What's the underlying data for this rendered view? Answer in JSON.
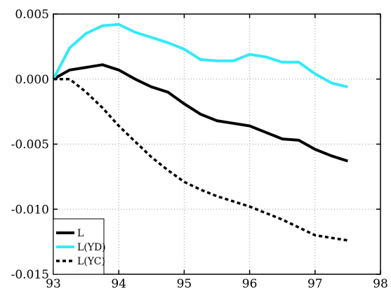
{
  "chart_data": {
    "type": "line",
    "title": "",
    "xlabel": "",
    "ylabel": "",
    "xlim": [
      93,
      98
    ],
    "ylim": [
      -0.015,
      0.005
    ],
    "xticks": [
      93,
      94,
      95,
      96,
      97,
      98
    ],
    "xtick_labels": [
      "93",
      "94",
      "95",
      "96",
      "97",
      "98"
    ],
    "yticks": [
      -0.015,
      -0.01,
      -0.005,
      0.0,
      0.005
    ],
    "ytick_labels": [
      "-0.015",
      "-0.010",
      "-0.005",
      "0.000",
      "0.005"
    ],
    "grid": true,
    "legend_position": "bottom-left",
    "x": [
      93.0,
      93.25,
      93.5,
      93.75,
      94.0,
      94.25,
      94.5,
      94.75,
      95.0,
      95.25,
      95.5,
      95.75,
      96.0,
      96.25,
      96.5,
      96.75,
      97.0,
      97.25,
      97.5
    ],
    "series": [
      {
        "name": "L",
        "color": "#000000",
        "dash": "solid",
        "values": [
          0.0,
          0.0007,
          0.0009,
          0.0011,
          0.0007,
          0.0,
          -0.0006,
          -0.001,
          -0.0019,
          -0.0027,
          -0.0032,
          -0.0034,
          -0.0036,
          -0.0041,
          -0.0046,
          -0.0047,
          -0.0054,
          -0.0059,
          -0.0063
        ]
      },
      {
        "name": "L(YD)",
        "color": "#33eaf7",
        "dash": "solid",
        "values": [
          0.0,
          0.0024,
          0.0035,
          0.0041,
          0.0042,
          0.0036,
          0.0032,
          0.0028,
          0.0023,
          0.0015,
          0.0014,
          0.0014,
          0.0019,
          0.0017,
          0.0013,
          0.0013,
          0.0004,
          -0.0003,
          -0.0006
        ]
      },
      {
        "name": "L(YC)",
        "color": "#000000",
        "dash": "dotted",
        "values": [
          0.0,
          0.0,
          -0.001,
          -0.0022,
          -0.0036,
          -0.0048,
          -0.006,
          -0.007,
          -0.0079,
          -0.0085,
          -0.009,
          -0.0094,
          -0.0098,
          -0.0103,
          -0.0108,
          -0.0114,
          -0.012,
          -0.0122,
          -0.0124
        ]
      }
    ]
  }
}
